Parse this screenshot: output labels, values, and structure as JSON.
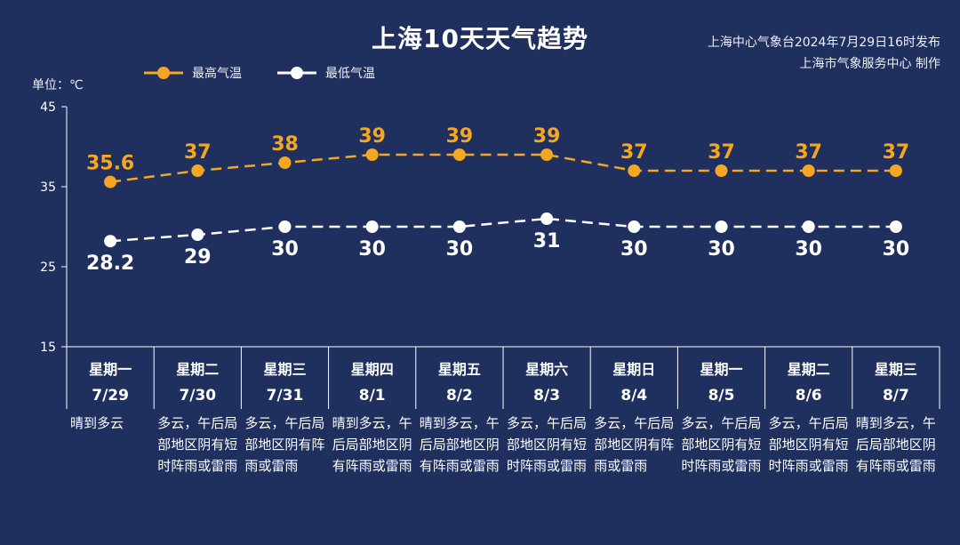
{
  "title": "上海10天天气趋势",
  "issuer": {
    "line1": "上海中心气象台2024年7月29日16时发布",
    "line2": "上海市气象服务中心 制作"
  },
  "unit_label": "单位：℃",
  "colors": {
    "background": "#1f2f5e",
    "high": "#f5a623",
    "low": "#ffffff",
    "axis": "#ffffff"
  },
  "chart_data": {
    "type": "line",
    "x": [
      "7/29",
      "7/30",
      "7/31",
      "8/1",
      "8/2",
      "8/3",
      "8/4",
      "8/5",
      "8/6",
      "8/7"
    ],
    "weekdays": [
      "星期一",
      "星期二",
      "星期三",
      "星期四",
      "星期五",
      "星期六",
      "星期日",
      "星期一",
      "星期二",
      "星期三"
    ],
    "series": [
      {
        "name": "最高气温",
        "values": [
          35.6,
          37,
          38,
          39,
          39,
          39,
          37,
          37,
          37,
          37
        ],
        "labels": [
          "35.6",
          "37",
          "38",
          "39",
          "39",
          "39",
          "37",
          "37",
          "37",
          "37"
        ]
      },
      {
        "name": "最低气温",
        "values": [
          28.2,
          29,
          30,
          30,
          30,
          31,
          30,
          30,
          30,
          30
        ],
        "labels": [
          "28.2",
          "29",
          "30",
          "30",
          "30",
          "31",
          "30",
          "30",
          "30",
          "30"
        ]
      }
    ],
    "ylim": [
      15,
      45
    ],
    "yticks": [
      15,
      25,
      35,
      45
    ],
    "line_style": "dashed",
    "legend_position": "top-left"
  },
  "weather": [
    "晴到多云",
    "多云，午后局部地区阴有短时阵雨或雷雨",
    "多云，午后局部地区阴有阵雨或雷雨",
    "晴到多云，午后局部地区阴有阵雨或雷雨",
    "晴到多云，午后局部地区阴有阵雨或雷雨",
    "多云，午后局部地区阴有短时阵雨或雷雨",
    "多云，午后局部地区阴有阵雨或雷雨",
    "多云，午后局部地区阴有短时阵雨或雷雨",
    "多云，午后局部地区阴有短时阵雨或雷雨",
    "晴到多云，午后局部地区阴有阵雨或雷雨"
  ]
}
